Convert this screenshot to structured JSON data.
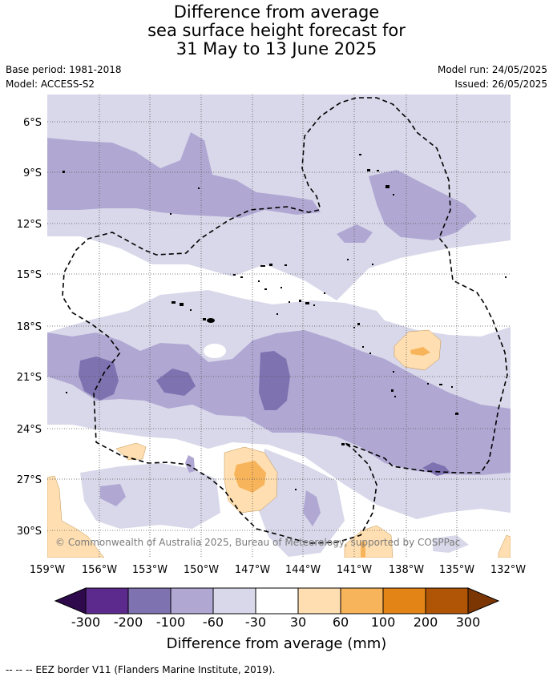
{
  "title_lines": [
    "Difference from average",
    "sea surface height forecast for",
    "31 May to 13 June 2025"
  ],
  "base_period": "Base period: 1981-2018",
  "model": "Model: ACCESS-S2",
  "model_run": "Model run: 24/05/2025",
  "issued": "Issued: 26/05/2025",
  "copyright": "© Commonwealth of Australia 2025, Bureau of Meteorology, supported by COSPPac",
  "eez_note": "-- -- -- EEZ border V11 (Flanders Marine Institute, 2019).",
  "map": {
    "lon_labels": [
      "159°W",
      "156°W",
      "153°W",
      "150°W",
      "147°W",
      "144°W",
      "141°W",
      "138°W",
      "135°W",
      "132°W"
    ],
    "lat_labels": [
      "6°S",
      "9°S",
      "12°S",
      "15°S",
      "18°S",
      "21°S",
      "24°S",
      "27°S",
      "30°S"
    ],
    "grid": true
  },
  "colorbar": {
    "label": "Difference from average (mm)",
    "ticks": [
      "-300",
      "-200",
      "-100",
      "-60",
      "-30",
      "30",
      "60",
      "100",
      "200",
      "300"
    ],
    "colors": [
      "#2e0a4d",
      "#5b2a8c",
      "#7f72b0",
      "#b0a8d3",
      "#d8d8ea",
      "#ffffff",
      "#ffdfb1",
      "#f7b45a",
      "#e38516",
      "#b05506",
      "#7c3604"
    ]
  }
}
